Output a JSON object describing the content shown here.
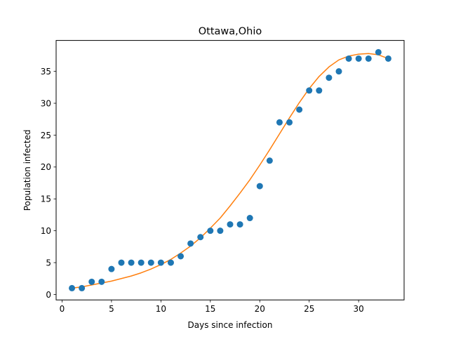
{
  "chart_data": {
    "type": "scatter",
    "title": "Ottawa,Ohio",
    "xlabel": "Days since infection",
    "ylabel": "Population infected",
    "xlim": [
      -0.6,
      34.6
    ],
    "ylim": [
      -0.85,
      39.85
    ],
    "xticks": [
      0,
      5,
      10,
      15,
      20,
      25,
      30
    ],
    "yticks": [
      0,
      5,
      10,
      15,
      20,
      25,
      30,
      35
    ],
    "grid": false,
    "series": [
      {
        "kind": "scatter",
        "color": "#1f77b4",
        "x": [
          1,
          2,
          3,
          4,
          5,
          6,
          7,
          8,
          9,
          10,
          11,
          12,
          13,
          14,
          15,
          16,
          17,
          18,
          19,
          20,
          21,
          22,
          23,
          24,
          25,
          26,
          27,
          28,
          29,
          30,
          31,
          32,
          33
        ],
        "y": [
          1,
          1,
          2,
          2,
          4,
          5,
          5,
          5,
          5,
          5,
          5,
          6,
          8,
          9,
          10,
          10,
          11,
          11,
          12,
          17,
          21,
          27,
          27,
          29,
          32,
          32,
          34,
          35,
          37,
          37,
          37,
          38,
          37
        ]
      },
      {
        "kind": "line",
        "color": "#ff7f0e",
        "x": [
          1,
          2,
          3,
          4,
          5,
          6,
          7,
          8,
          9,
          10,
          11,
          12,
          13,
          14,
          15,
          16,
          17,
          18,
          19,
          20,
          21,
          22,
          23,
          24,
          25,
          26,
          27,
          28,
          29,
          30,
          31,
          32,
          33
        ],
        "y": [
          1.0,
          1.2,
          1.5,
          1.8,
          2.1,
          2.5,
          2.9,
          3.4,
          4.0,
          4.7,
          5.5,
          6.5,
          7.6,
          8.9,
          10.4,
          12.0,
          13.9,
          15.9,
          18.0,
          20.3,
          22.7,
          25.2,
          27.7,
          30.1,
          32.3,
          34.2,
          35.7,
          36.8,
          37.4,
          37.7,
          37.8,
          37.6,
          37.0
        ]
      }
    ]
  }
}
